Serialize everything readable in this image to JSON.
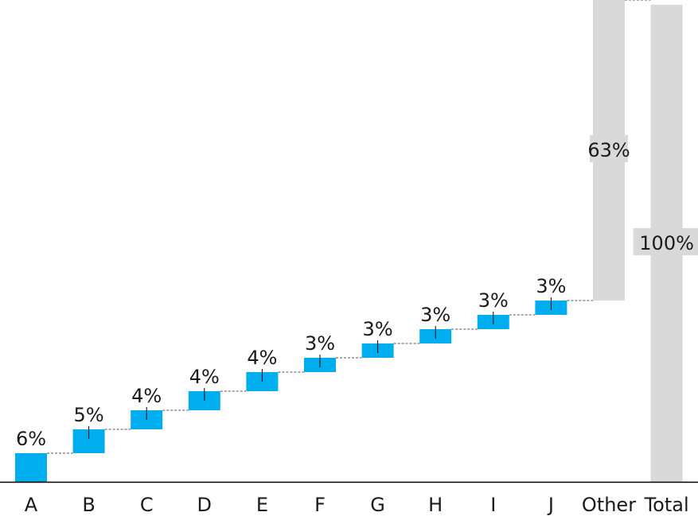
{
  "chart_data": {
    "type": "bar",
    "subtype": "waterfall",
    "categories": [
      "A",
      "B",
      "C",
      "D",
      "E",
      "F",
      "G",
      "H",
      "I",
      "J",
      "Other",
      "Total"
    ],
    "values": [
      6,
      5,
      4,
      4,
      4,
      3,
      3,
      3,
      3,
      3,
      63,
      100
    ],
    "labels": [
      "6%",
      "5%",
      "4%",
      "4%",
      "4%",
      "3%",
      "3%",
      "3%",
      "3%",
      "3%",
      "63%",
      "100%"
    ],
    "unit": "%",
    "total_index": 11,
    "ylim": [
      0,
      100
    ],
    "grid": false,
    "legend": "none",
    "colors": {
      "step": "#00AEEF",
      "other": "#D9D9D9",
      "total": "#D9D9D9",
      "connector": "#555555",
      "label_bg": "#D9D9D9",
      "axis": "#000000"
    },
    "title": "",
    "xlabel": "",
    "ylabel": ""
  }
}
